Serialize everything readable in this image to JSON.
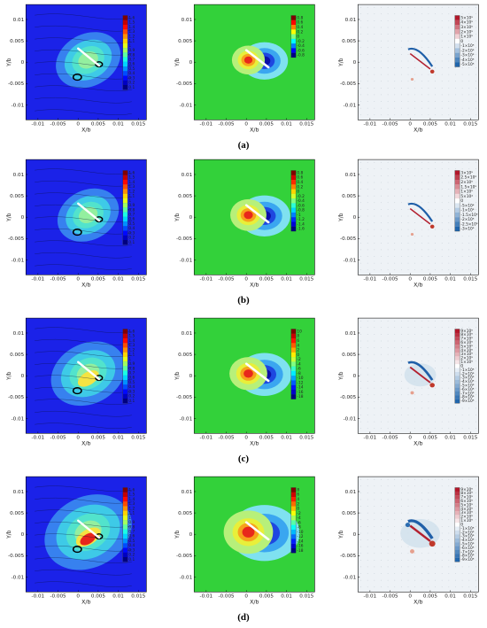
{
  "axes": {
    "xlabel": "X/b",
    "ylabel": "Y/b",
    "xticks": [
      "-0.01",
      "-0.005",
      "0",
      "0.005",
      "0.01",
      "0.015"
    ],
    "yticks": [
      "0.01",
      "0.005",
      "0",
      "-0.005",
      "-0.01"
    ]
  },
  "captions": [
    "(a)",
    "(b)",
    "(c)",
    "(d)"
  ],
  "colorbar_labels": {
    "col1_a": [
      "1.6",
      "1.5",
      "1.4",
      "1.3",
      "1.2",
      "1.1",
      "1",
      "0.9",
      "0.8",
      "0.7",
      "0.6",
      "0.5",
      "0.4",
      "0.3",
      "0.2",
      "0.1"
    ],
    "col1_b": [
      "1.6",
      "1.5",
      "1.4",
      "1.3",
      "1.2",
      "1.1",
      "1",
      "0.9",
      "0.8",
      "0.7",
      "0.6",
      "0.5",
      "0.4",
      "0.3",
      "0.2",
      "0.1"
    ],
    "col1_c": [
      "1.6",
      "1.5",
      "1.4",
      "1.3",
      "1.2",
      "1.1",
      "1",
      "0.9",
      "0.8",
      "0.7",
      "0.6",
      "0.5",
      "0.4",
      "0.3",
      "0.2",
      "0.1"
    ],
    "col1_d": [
      "1.6",
      "1.5",
      "1.4",
      "1.3",
      "1.2",
      "1.1",
      "1",
      "0.9",
      "0.8",
      "0.7",
      "0.6",
      "0.5",
      "0.4",
      "0.3",
      "0.2",
      "0.1"
    ],
    "col2_a": [
      "0.8",
      "0.6",
      "0.4",
      "0.2",
      "0",
      "-0.2",
      "-0.4",
      "-0.6",
      "-0.8"
    ],
    "col2_b": [
      "0.8",
      "0.6",
      "0.4",
      "0.2",
      "0",
      "-0.2",
      "-0.4",
      "-0.6",
      "-0.8",
      "-1",
      "-1.2",
      "-1.4",
      "-1.6"
    ],
    "col2_c": [
      "10",
      "8",
      "6",
      "4",
      "2",
      "0",
      "-2",
      "-4",
      "-6",
      "-8",
      "-10",
      "-12",
      "-14",
      "-16",
      "-18"
    ],
    "col2_d": [
      "8",
      "6",
      "4",
      "2",
      "0",
      "-2",
      "-4",
      "-6",
      "-8",
      "-10",
      "-12",
      "-14",
      "-16",
      "-18"
    ],
    "col3_a": [
      "5×10⁵",
      "4×10⁵",
      "3×10⁵",
      "2×10⁵",
      "1×10⁵",
      "0",
      "-1×10⁵",
      "-2×10⁵",
      "-3×10⁵",
      "-4×10⁵",
      "-5×10⁵"
    ],
    "col3_b": [
      "3×10⁵",
      "2.5×10⁵",
      "2×10⁵",
      "1.5×10⁵",
      "1×10⁵",
      "5×10⁴",
      "0",
      "-5×10⁴",
      "-1×10⁵",
      "-1.5×10⁵",
      "-2×10⁵",
      "-2.5×10⁵",
      "-3×10⁵"
    ],
    "col3_c": [
      "9×10⁵",
      "8×10⁵",
      "7×10⁵",
      "6×10⁵",
      "5×10⁵",
      "4×10⁵",
      "3×10⁵",
      "2×10⁵",
      "1×10⁵",
      "0",
      "-1×10⁵",
      "-2×10⁵",
      "-3×10⁵",
      "-4×10⁵",
      "-5×10⁵",
      "-6×10⁵",
      "-7×10⁵",
      "-8×10⁵",
      "-9×10⁵"
    ],
    "col3_d": [
      "9×10⁵",
      "8×10⁵",
      "7×10⁵",
      "6×10⁵",
      "5×10⁵",
      "4×10⁵",
      "3×10⁵",
      "2×10⁵",
      "1×10⁵",
      "0",
      "-1×10⁵",
      "-2×10⁵",
      "-3×10⁵",
      "-4×10⁵",
      "-5×10⁵",
      "-6×10⁵",
      "-7×10⁵",
      "-8×10⁵",
      "-9×10⁵"
    ]
  },
  "colors": {
    "velocity_background": "#1b22e8",
    "pressure_background": "#33d13a",
    "vorticity_background": "#eef2f6"
  }
}
